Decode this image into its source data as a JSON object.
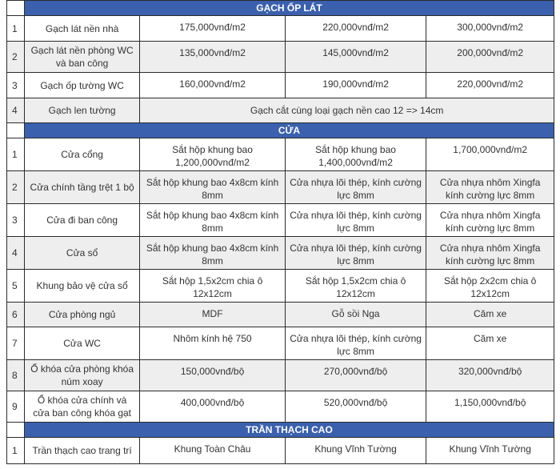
{
  "sections": [
    {
      "title": "GẠCH ỐP LÁT",
      "rows": [
        {
          "no": "1",
          "name": "Gạch lát nền nhà",
          "cells": [
            "175,000vnđ/m2",
            "220,000vnđ/m2",
            "300,000vnđ/m2"
          ]
        },
        {
          "no": "2",
          "name": "Gạch lát nền phòng WC và ban công",
          "cells": [
            "135,000vnđ/m2",
            "145,000vnđ/m2",
            "200,000vnđ/m2"
          ]
        },
        {
          "no": "3",
          "name": "Gạch ốp tường WC",
          "cells": [
            "160,000vnđ/m2",
            "190,000vnđ/m2",
            "220,000vnđ/m2"
          ]
        },
        {
          "no": "4",
          "name": "Gạch len tường",
          "merged": "Gạch cắt cùng loại gạch nền cao 12 => 14cm"
        }
      ]
    },
    {
      "title": "CỬA",
      "rows": [
        {
          "no": "1",
          "name": "Cửa cổng",
          "cells": [
            "Sắt hộp khung bao 1,200,000vnđ/m2",
            "Sắt hộp khung bao 1,400,000vnđ/m2",
            "1,700,000vnđ/m2"
          ]
        },
        {
          "no": "2",
          "name": "Cửa chính tầng trệt 1 bộ",
          "cells": [
            "Sắt hộp khung bao 4x8cm kính 8mm",
            "Cửa nhựa lõi thép, kính cường lực 8mm",
            "Cửa nhựa nhôm Xingfa kính cường lực 8mm"
          ]
        },
        {
          "no": "3",
          "name": "Cửa đi ban công",
          "cells": [
            "Sắt hộp khung bao 4x8cm kính 8mm",
            "Cửa nhựa lõi thép, kính cường lực 8mm",
            "Cửa nhựa nhôm Xingfa kính cường lực 8mm"
          ]
        },
        {
          "no": "4",
          "name": "Cửa sổ",
          "cells": [
            "Sắt hộp khung bao 4x8cm kính 8mm",
            "Cửa nhựa lõi thép, kính cường lực 8mm",
            "Cửa nhựa nhôm Xingfa kính cường lực 8mm"
          ]
        },
        {
          "no": "5",
          "name": "Khung bảo vệ cửa sổ",
          "cells": [
            "Sắt hộp 1,5x2cm chia ô 12x12cm",
            "Sắt hộp 1,5x2cm chia ô 12x12cm",
            "Sắt hộp 2x2cm chia ô 12x12cm"
          ]
        },
        {
          "no": "6",
          "name": "Cửa phòng ngủ",
          "cells": [
            "MDF",
            "Gỗ sồi Nga",
            "Căm xe"
          ]
        },
        {
          "no": "7",
          "name": "Cửa WC",
          "cells": [
            "Nhôm kính hệ 750",
            "Cửa nhựa lõi thép, kính cường lực 8mm",
            "Căm xe"
          ]
        },
        {
          "no": "8",
          "name": "Ổ khóa cửa phòng khóa núm xoay",
          "cells": [
            "150,000vnđ/bộ",
            "270,000vnđ/bộ",
            "320,000vnđ/bộ"
          ]
        },
        {
          "no": "9",
          "name": "Ổ khóa cửa chính và cửa ban công khóa gạt",
          "cells": [
            "400,000vnđ/bộ",
            "520,000vnđ/bộ",
            "1,150,000vnđ/bộ"
          ]
        }
      ]
    },
    {
      "title": "TRẦN THẠCH CAO",
      "rows": [
        {
          "no": "1",
          "name": "Trần thạch cao trang trí",
          "cells": [
            "Khung Toàn Châu",
            "Khung Vĩnh Tường",
            "Khung Vĩnh Tường"
          ]
        }
      ]
    }
  ],
  "colors": {
    "header": "#3a60ae",
    "alt_row": "#eeeeee"
  }
}
